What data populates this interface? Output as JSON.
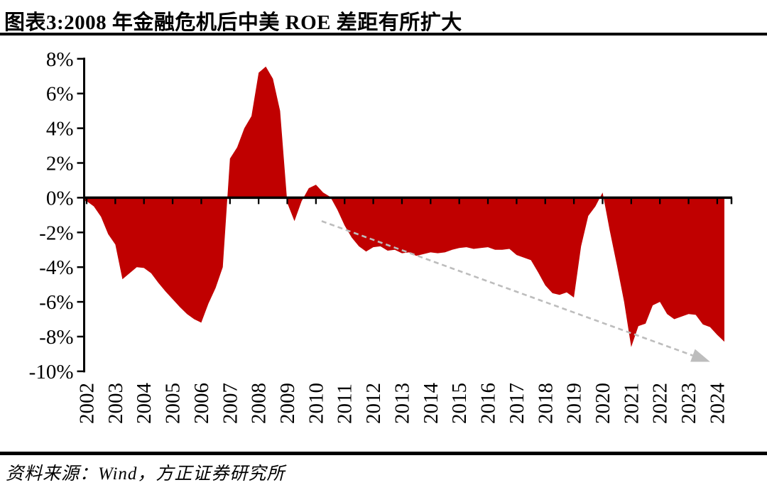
{
  "header": {
    "title": "图表3:2008 年金融危机后中美 ROE 差距有所扩大"
  },
  "footer": {
    "source": "资料来源：Wind，方正证券研究所"
  },
  "chart_data": {
    "type": "area",
    "title": "图表3:2008 年金融危机后中美 ROE 差距有所扩大",
    "xlabel": "",
    "ylabel": "",
    "ylim": [
      -10,
      8
    ],
    "ytick_step": 2,
    "ytick_labels": [
      "8%",
      "6%",
      "4%",
      "2%",
      "0%",
      "-2%",
      "-4%",
      "-6%",
      "-8%",
      "-10%"
    ],
    "xtick_labels": [
      "2002",
      "2003",
      "2004",
      "2005",
      "2006",
      "2007",
      "2008",
      "2009",
      "2010",
      "2011",
      "2012",
      "2013",
      "2014",
      "2015",
      "2016",
      "2017",
      "2018",
      "2019",
      "2020",
      "2021",
      "2022",
      "2023",
      "2024"
    ],
    "grid": false,
    "legend": false,
    "unit": "percent",
    "x": [
      2002.0,
      2002.25,
      2002.5,
      2002.75,
      2003.0,
      2003.25,
      2003.5,
      2003.75,
      2004.0,
      2004.25,
      2004.5,
      2004.75,
      2005.0,
      2005.25,
      2005.5,
      2005.75,
      2006.0,
      2006.25,
      2006.5,
      2006.75,
      2007.0,
      2007.25,
      2007.5,
      2007.75,
      2008.0,
      2008.25,
      2008.5,
      2008.75,
      2009.0,
      2009.25,
      2009.5,
      2009.75,
      2010.0,
      2010.25,
      2010.5,
      2010.75,
      2011.0,
      2011.25,
      2011.5,
      2011.75,
      2012.0,
      2012.25,
      2012.5,
      2012.75,
      2013.0,
      2013.25,
      2013.5,
      2013.75,
      2014.0,
      2014.25,
      2014.5,
      2014.75,
      2015.0,
      2015.25,
      2015.5,
      2015.75,
      2016.0,
      2016.25,
      2016.5,
      2016.75,
      2017.0,
      2017.25,
      2017.5,
      2017.75,
      2018.0,
      2018.25,
      2018.5,
      2018.75,
      2019.0,
      2019.25,
      2019.5,
      2019.75,
      2020.0,
      2020.25,
      2020.5,
      2020.75,
      2021.0,
      2021.25,
      2021.5,
      2021.75,
      2022.0,
      2022.25,
      2022.5,
      2022.75,
      2023.0,
      2023.25,
      2023.5,
      2023.75,
      2024.0,
      2024.25
    ],
    "values": [
      -0.2,
      -0.5,
      -1.1,
      -2.1,
      -2.7,
      -4.7,
      -4.35,
      -4.0,
      -4.05,
      -4.35,
      -4.9,
      -5.4,
      -5.85,
      -6.3,
      -6.7,
      -7.0,
      -7.2,
      -6.1,
      -5.2,
      -4.0,
      2.25,
      2.9,
      4.0,
      4.7,
      7.2,
      7.55,
      6.85,
      5.0,
      -0.3,
      -1.35,
      -0.2,
      0.55,
      0.75,
      0.3,
      0.05,
      -0.7,
      -1.6,
      -2.3,
      -2.8,
      -3.1,
      -2.85,
      -2.8,
      -3.05,
      -3.0,
      -3.2,
      -3.15,
      -3.35,
      -3.25,
      -3.15,
      -3.2,
      -3.15,
      -3.0,
      -2.9,
      -2.85,
      -2.95,
      -2.9,
      -2.85,
      -3.0,
      -3.0,
      -2.95,
      -3.3,
      -3.45,
      -3.6,
      -4.3,
      -5.05,
      -5.5,
      -5.6,
      -5.45,
      -5.75,
      -2.8,
      -1.05,
      -0.5,
      0.3,
      -1.9,
      -3.9,
      -6.0,
      -8.6,
      -7.4,
      -7.25,
      -6.2,
      -6.0,
      -6.7,
      -7.0,
      -6.85,
      -6.7,
      -6.75,
      -7.3,
      -7.45,
      -7.9,
      -8.3
    ],
    "colors": {
      "area": "#C00000",
      "axis": "#000000",
      "trend_arrow": "#BDBDBD"
    },
    "trend_arrow": {
      "style": "dashed",
      "from": {
        "x": 2010.2,
        "value": -1.35
      },
      "to": {
        "x": 2023.75,
        "value": -9.45
      }
    }
  }
}
